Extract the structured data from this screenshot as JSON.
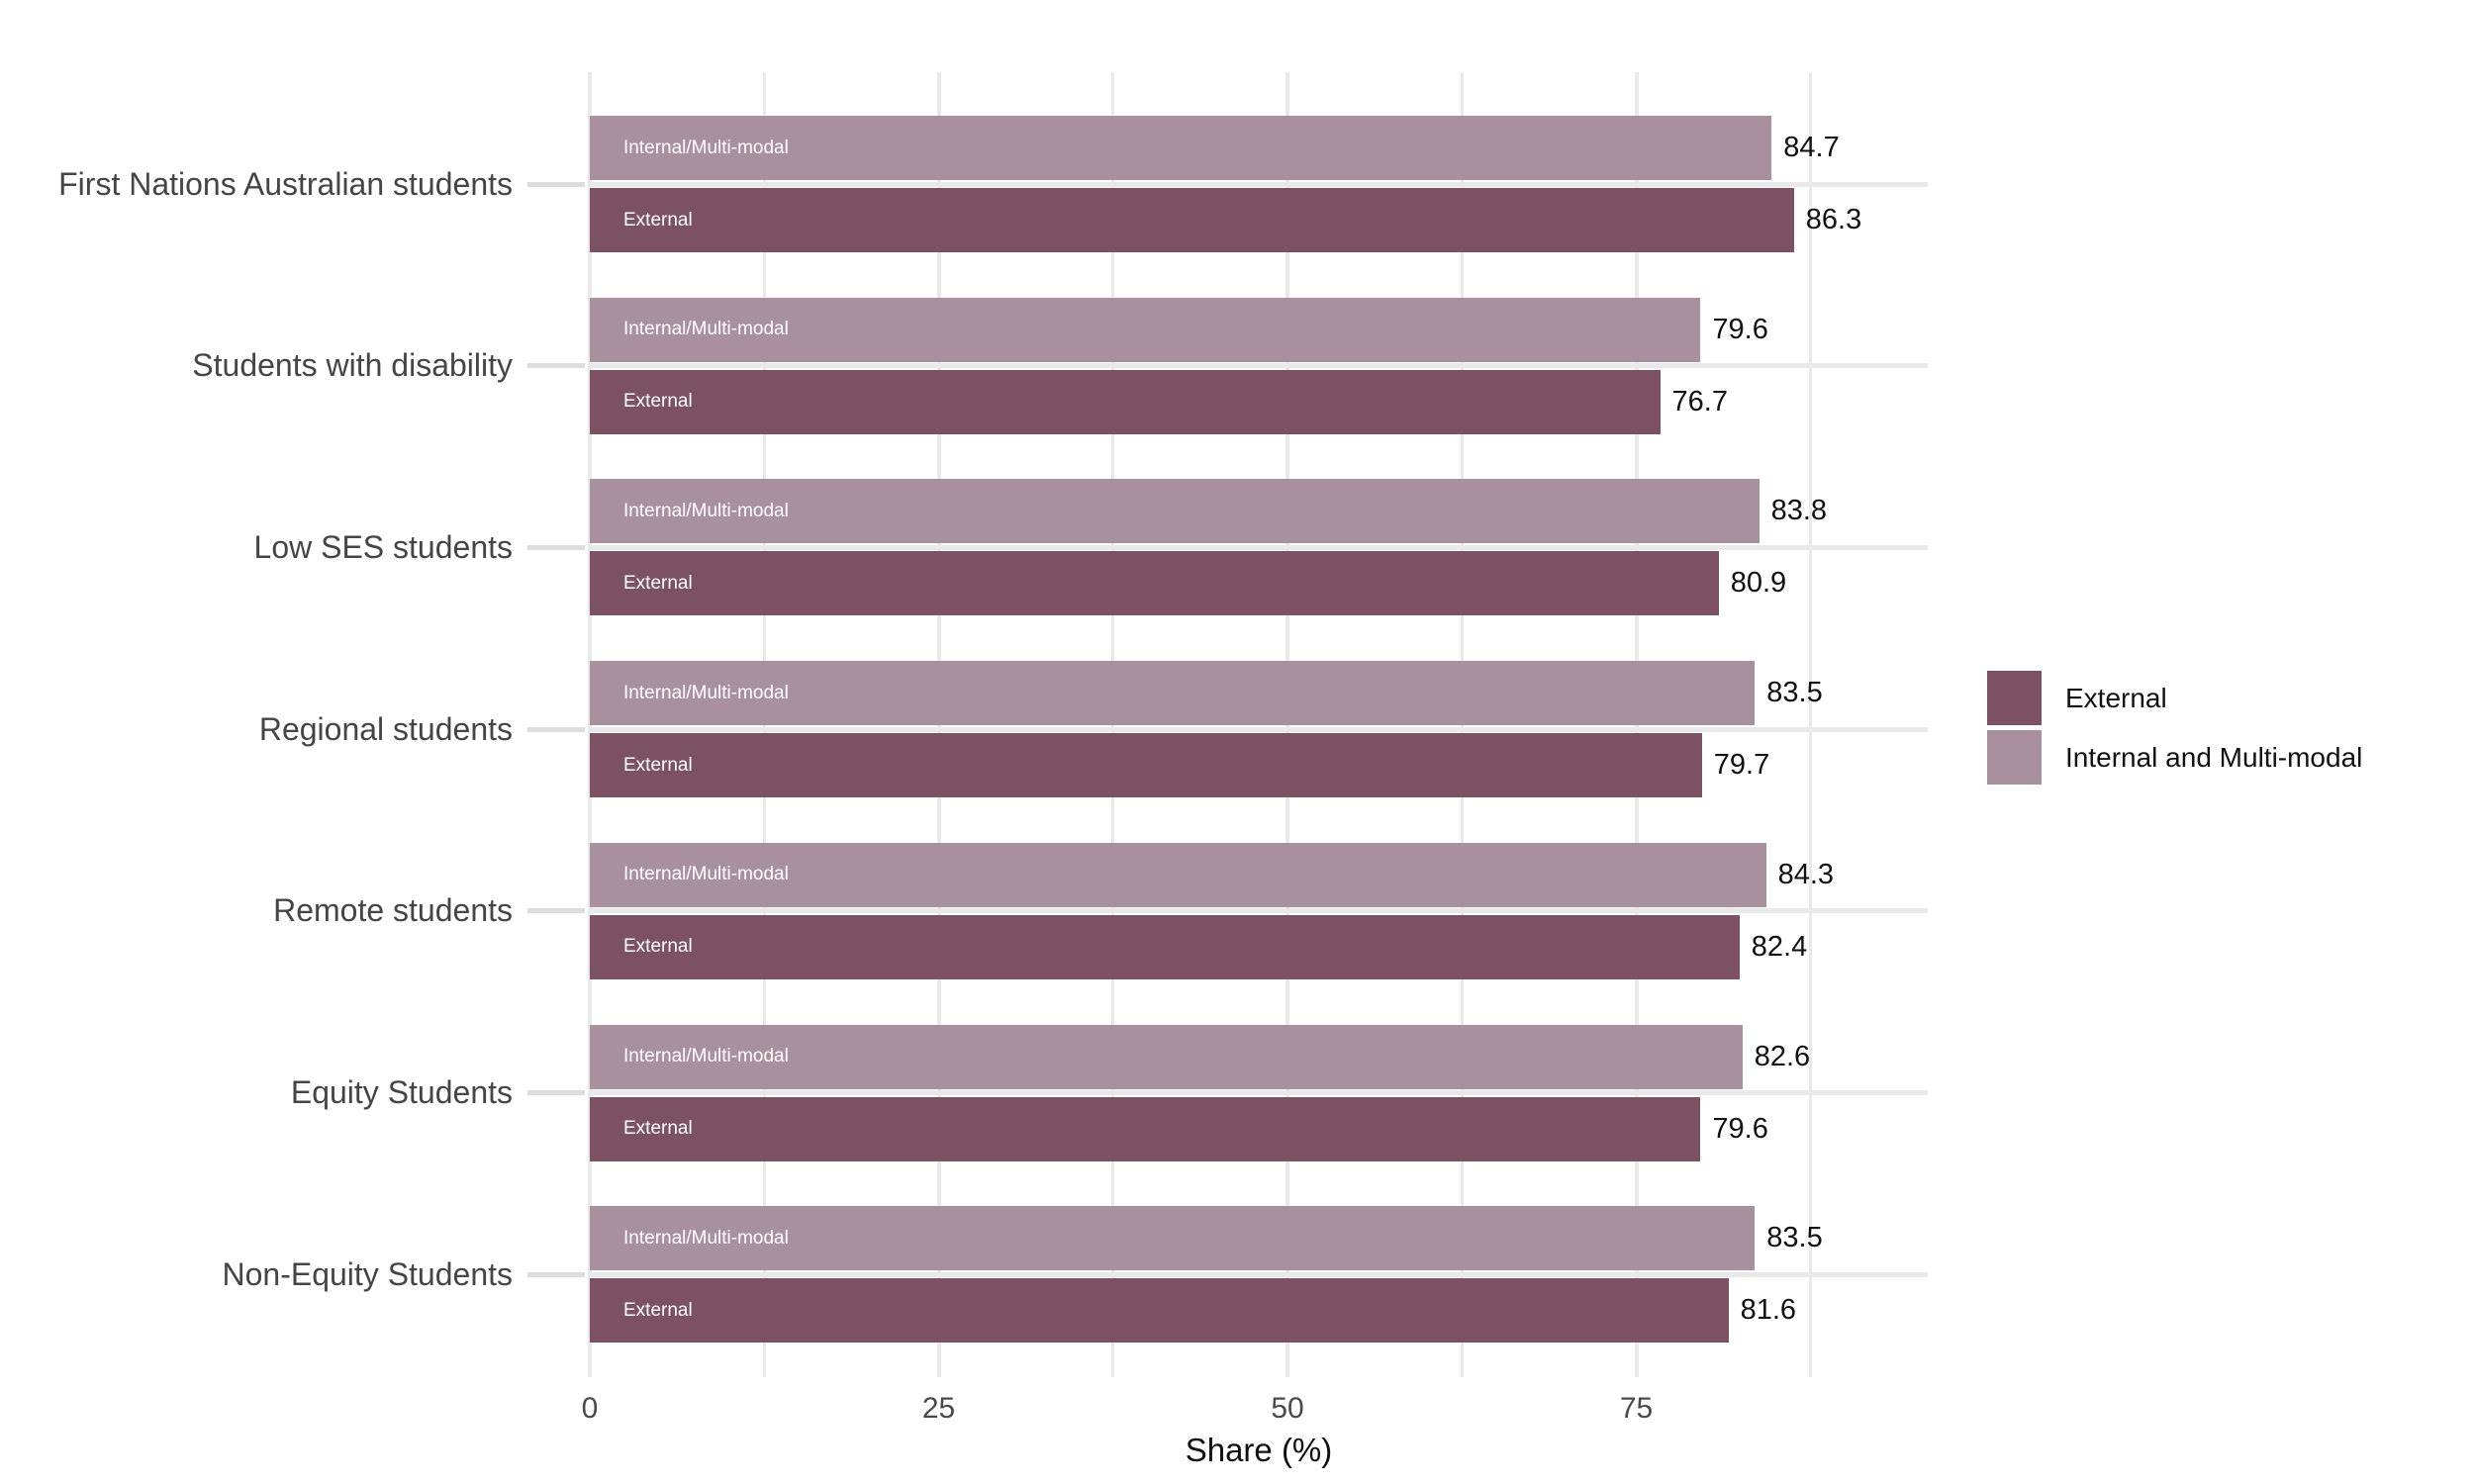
{
  "chart_data": {
    "type": "bar",
    "orientation": "horizontal-grouped",
    "xlabel": "Share (%)",
    "x_ticks": [
      "0",
      "25",
      "50",
      "75"
    ],
    "x_tick_values": [
      0,
      25,
      50,
      75
    ],
    "x_minor_gridlines": [
      12.5,
      37.5,
      62.5,
      87.5
    ],
    "xlim": [
      0,
      96
    ],
    "grid": "on",
    "categories": [
      "First Nations Australian students",
      "Students with disability",
      "Low SES students",
      "Regional students",
      "Remote students",
      "Equity Students",
      "Non-Equity Students"
    ],
    "series": [
      {
        "name": "Internal and Multi-modal",
        "bar_label": "Internal/Multi-modal",
        "color": "#a9909e",
        "label_color": "#ffffff",
        "values": [
          84.7,
          79.6,
          83.8,
          83.5,
          84.3,
          82.6,
          83.5
        ]
      },
      {
        "name": "External",
        "bar_label": "External",
        "color": "#7c5164",
        "label_color": "#ffffff",
        "values": [
          86.3,
          76.7,
          80.9,
          79.7,
          82.4,
          79.6,
          81.6
        ]
      }
    ],
    "value_labels": {
      "internal_multimodal": [
        "84.7",
        "79.6",
        "83.8",
        "83.5",
        "84.3",
        "82.6",
        "83.5"
      ],
      "external": [
        "86.3",
        "76.7",
        "80.9",
        "79.7",
        "82.4",
        "79.6",
        "81.6"
      ]
    },
    "legend": {
      "position": "right",
      "entries": [
        {
          "label": "External",
          "color": "#7c5164"
        },
        {
          "label": "Internal and Multi-modal",
          "color": "#a9909e"
        }
      ]
    }
  },
  "colors": {
    "background": "#ffffff",
    "grid": "#e9e9e9",
    "y_tick_mark": "#dddddd",
    "axis_text": "#4a4a4a",
    "category_text": "#454545",
    "value_text": "#111111",
    "bar_label_text": "#ffffff"
  }
}
